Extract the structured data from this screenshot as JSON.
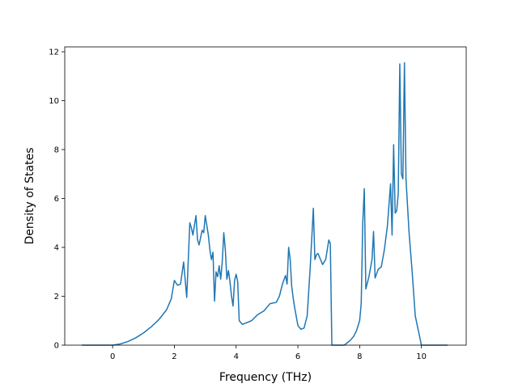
{
  "chart_data": {
    "type": "line",
    "title": "",
    "xlabel": "Frequency (THz)",
    "ylabel": "Density of States",
    "xlim": [
      -1.55,
      11.45
    ],
    "ylim": [
      0,
      12.2
    ],
    "xticks": [
      0,
      2,
      4,
      6,
      8,
      10
    ],
    "yticks": [
      0,
      2,
      4,
      6,
      8,
      10,
      12
    ],
    "grid": false,
    "legend": "none",
    "series": [
      {
        "name": "",
        "color": "#1f77b4",
        "x": [
          -1.0,
          0.0,
          0.25,
          0.5,
          0.75,
          1.0,
          1.25,
          1.5,
          1.75,
          1.9,
          2.0,
          2.1,
          2.2,
          2.3,
          2.4,
          2.5,
          2.55,
          2.6,
          2.7,
          2.75,
          2.8,
          2.9,
          2.95,
          3.0,
          3.05,
          3.1,
          3.15,
          3.2,
          3.25,
          3.3,
          3.35,
          3.4,
          3.45,
          3.5,
          3.55,
          3.6,
          3.65,
          3.7,
          3.75,
          3.8,
          3.85,
          3.9,
          3.95,
          4.0,
          4.05,
          4.1,
          4.2,
          4.3,
          4.5,
          4.7,
          4.9,
          5.1,
          5.3,
          5.4,
          5.5,
          5.6,
          5.65,
          5.7,
          5.75,
          5.8,
          5.85,
          5.9,
          6.0,
          6.1,
          6.2,
          6.3,
          6.4,
          6.5,
          6.55,
          6.6,
          6.65,
          6.7,
          6.8,
          6.9,
          7.0,
          7.05,
          7.1,
          7.15,
          7.5,
          7.6,
          7.7,
          7.8,
          7.9,
          8.0,
          8.05,
          8.1,
          8.15,
          8.2,
          8.3,
          8.4,
          8.45,
          8.5,
          8.6,
          8.7,
          8.8,
          8.9,
          9.0,
          9.05,
          9.1,
          9.15,
          9.2,
          9.25,
          9.3,
          9.35,
          9.4,
          9.45,
          9.5,
          9.6,
          9.7,
          9.8,
          10.0,
          10.5,
          10.85
        ],
        "values": [
          0,
          0,
          0.05,
          0.15,
          0.3,
          0.5,
          0.75,
          1.05,
          1.45,
          1.9,
          2.65,
          2.45,
          2.5,
          3.4,
          1.95,
          5.0,
          4.8,
          4.5,
          5.3,
          4.3,
          4.1,
          4.7,
          4.6,
          5.3,
          4.9,
          4.5,
          3.9,
          3.5,
          3.8,
          1.8,
          3.0,
          2.8,
          3.25,
          2.7,
          3.4,
          4.6,
          3.9,
          2.7,
          3.05,
          2.6,
          2.0,
          1.6,
          2.65,
          2.9,
          2.6,
          1.0,
          0.85,
          0.9,
          1.0,
          1.25,
          1.4,
          1.7,
          1.75,
          2.0,
          2.5,
          2.85,
          2.5,
          4.0,
          3.5,
          2.4,
          1.9,
          1.5,
          0.8,
          0.65,
          0.7,
          1.2,
          3.2,
          5.6,
          3.5,
          3.7,
          3.75,
          3.6,
          3.3,
          3.5,
          4.3,
          4.15,
          0,
          0,
          0,
          0.1,
          0.2,
          0.35,
          0.6,
          1.0,
          1.7,
          5.0,
          6.4,
          2.3,
          2.8,
          3.5,
          4.65,
          2.75,
          3.1,
          3.2,
          3.9,
          4.9,
          6.6,
          4.5,
          8.2,
          5.4,
          5.5,
          6.2,
          11.5,
          7.0,
          6.8,
          11.55,
          6.8,
          4.6,
          3.0,
          1.2,
          0,
          0,
          0
        ]
      }
    ]
  }
}
